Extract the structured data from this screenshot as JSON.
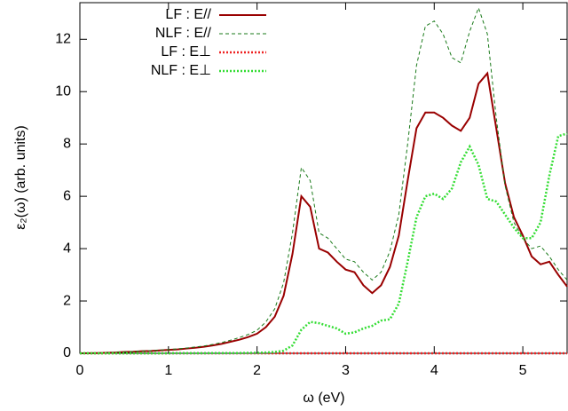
{
  "chart_data": {
    "type": "line",
    "x_label": "ω (eV)",
    "y_label": "ε₂(ω)  (arb. units)",
    "x": [
      0.0,
      0.1,
      0.2,
      0.3,
      0.4,
      0.5,
      0.6,
      0.7,
      0.8,
      0.9,
      1.0,
      1.1,
      1.2,
      1.3,
      1.4,
      1.5,
      1.6,
      1.7,
      1.8,
      1.9,
      2.0,
      2.1,
      2.2,
      2.3,
      2.4,
      2.5,
      2.6,
      2.7,
      2.8,
      2.9,
      3.0,
      3.1,
      3.2,
      3.3,
      3.4,
      3.5,
      3.6,
      3.7,
      3.8,
      3.9,
      4.0,
      4.1,
      4.2,
      4.3,
      4.4,
      4.5,
      4.6,
      4.7,
      4.8,
      4.9,
      5.0,
      5.1,
      5.2,
      5.3,
      5.4,
      5.5
    ],
    "series": [
      {
        "name": "LF : E//",
        "color": "#990000",
        "dash": "solid",
        "values": [
          0,
          0.005,
          0.01,
          0.02,
          0.03,
          0.05,
          0.06,
          0.08,
          0.09,
          0.11,
          0.13,
          0.15,
          0.18,
          0.21,
          0.25,
          0.3,
          0.36,
          0.44,
          0.52,
          0.62,
          0.75,
          1.0,
          1.4,
          2.2,
          3.8,
          6.0,
          5.6,
          4.0,
          3.85,
          3.5,
          3.2,
          3.1,
          2.6,
          2.3,
          2.6,
          3.3,
          4.5,
          6.6,
          8.6,
          9.2,
          9.2,
          9.0,
          8.7,
          8.5,
          9.0,
          10.3,
          10.7,
          8.6,
          6.5,
          5.2,
          4.5,
          3.7,
          3.4,
          3.5,
          3.0,
          2.55
        ]
      },
      {
        "name": "NLF : E//",
        "color": "#1a7a1a",
        "dash": "dashed",
        "values": [
          0,
          0.005,
          0.01,
          0.02,
          0.04,
          0.05,
          0.07,
          0.09,
          0.1,
          0.12,
          0.14,
          0.17,
          0.2,
          0.24,
          0.28,
          0.34,
          0.41,
          0.5,
          0.6,
          0.72,
          0.88,
          1.2,
          1.7,
          2.7,
          4.6,
          7.1,
          6.6,
          4.6,
          4.4,
          4.0,
          3.6,
          3.5,
          3.1,
          2.8,
          3.1,
          3.9,
          5.3,
          8.0,
          11.0,
          12.5,
          12.7,
          12.2,
          11.3,
          11.1,
          12.3,
          13.2,
          12.2,
          9.0,
          6.4,
          5.0,
          4.4,
          4.0,
          4.1,
          3.7,
          3.2,
          2.8
        ]
      },
      {
        "name": "LF : E⊥",
        "color": "#ee2222",
        "dash": "dotted",
        "values": [
          0,
          0,
          0,
          0,
          0,
          0,
          0,
          0,
          0,
          0,
          0,
          0,
          0,
          0,
          0,
          0,
          0,
          0,
          0,
          0,
          0,
          0,
          0,
          0,
          0,
          0,
          0,
          0,
          0,
          0,
          0,
          0,
          0,
          0,
          0,
          0,
          0,
          0,
          0,
          0,
          0,
          0,
          0,
          0,
          0,
          0,
          0,
          0,
          0,
          0,
          0,
          0,
          0,
          0,
          0,
          0
        ]
      },
      {
        "name": "NLF : E⊥",
        "color": "#33dd33",
        "dash": "dotted",
        "values": [
          0,
          0,
          0,
          0,
          0,
          0,
          0,
          0,
          0,
          0,
          0,
          0.005,
          0.005,
          0.005,
          0.005,
          0.01,
          0.01,
          0.01,
          0.01,
          0.015,
          0.02,
          0.03,
          0.05,
          0.1,
          0.3,
          0.9,
          1.2,
          1.15,
          1.05,
          0.95,
          0.75,
          0.8,
          0.95,
          1.05,
          1.25,
          1.3,
          1.9,
          3.5,
          5.2,
          6.0,
          6.1,
          5.9,
          6.3,
          7.3,
          7.9,
          7.2,
          5.9,
          5.8,
          5.3,
          4.8,
          4.4,
          4.4,
          5.0,
          6.8,
          8.3,
          8.4
        ]
      }
    ],
    "xlim": [
      0,
      5.5
    ],
    "ylim": [
      0,
      13.4
    ],
    "xticks": [
      0,
      1,
      2,
      3,
      4,
      5
    ],
    "yticks": [
      0,
      2,
      4,
      6,
      8,
      10,
      12
    ],
    "grid": false,
    "legend": "top-left"
  }
}
